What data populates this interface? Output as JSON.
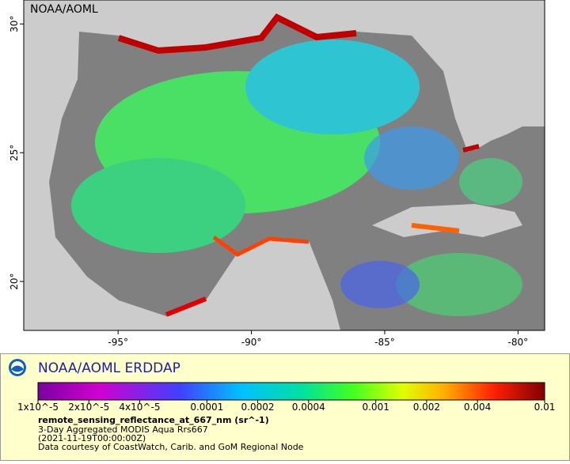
{
  "map": {
    "watermark": "NOAA/AOML",
    "lonlim": [
      -98.54,
      -79.0
    ],
    "latlim": [
      18.1,
      30.93
    ],
    "lon_ticks": [
      {
        "value": -95,
        "label": "-95°"
      },
      {
        "value": -90,
        "label": "-90°"
      },
      {
        "value": -85,
        "label": "-85°"
      },
      {
        "value": -80,
        "label": "-80°"
      }
    ],
    "lat_ticks": [
      {
        "value": 30,
        "label": "30°"
      },
      {
        "value": 25,
        "label": "25°"
      },
      {
        "value": 20,
        "label": "20°"
      }
    ]
  },
  "legend": {
    "title": "NOAA/AOML ERDDAP",
    "range": [
      1e-05,
      0.01
    ],
    "log_scale": true,
    "ticks": [
      {
        "value": 1e-05,
        "label": "1x10^-5"
      },
      {
        "value": 2e-05,
        "label": "2x10^-5"
      },
      {
        "value": 4e-05,
        "label": "4x10^-5"
      },
      0.0001,
      0.0002,
      0.0004,
      0.001,
      0.002,
      0.004,
      0.01
    ],
    "variable": "remote_sensing_reflectance_at_667_nm (sr^-1)",
    "lines": [
      "3-Day Aggregated MODIS Aqua Rrs667",
      "(2021-11-19T00:00:00Z)",
      "Data courtesy of CoastWatch, Carib. and GoM Regional Node"
    ]
  }
}
